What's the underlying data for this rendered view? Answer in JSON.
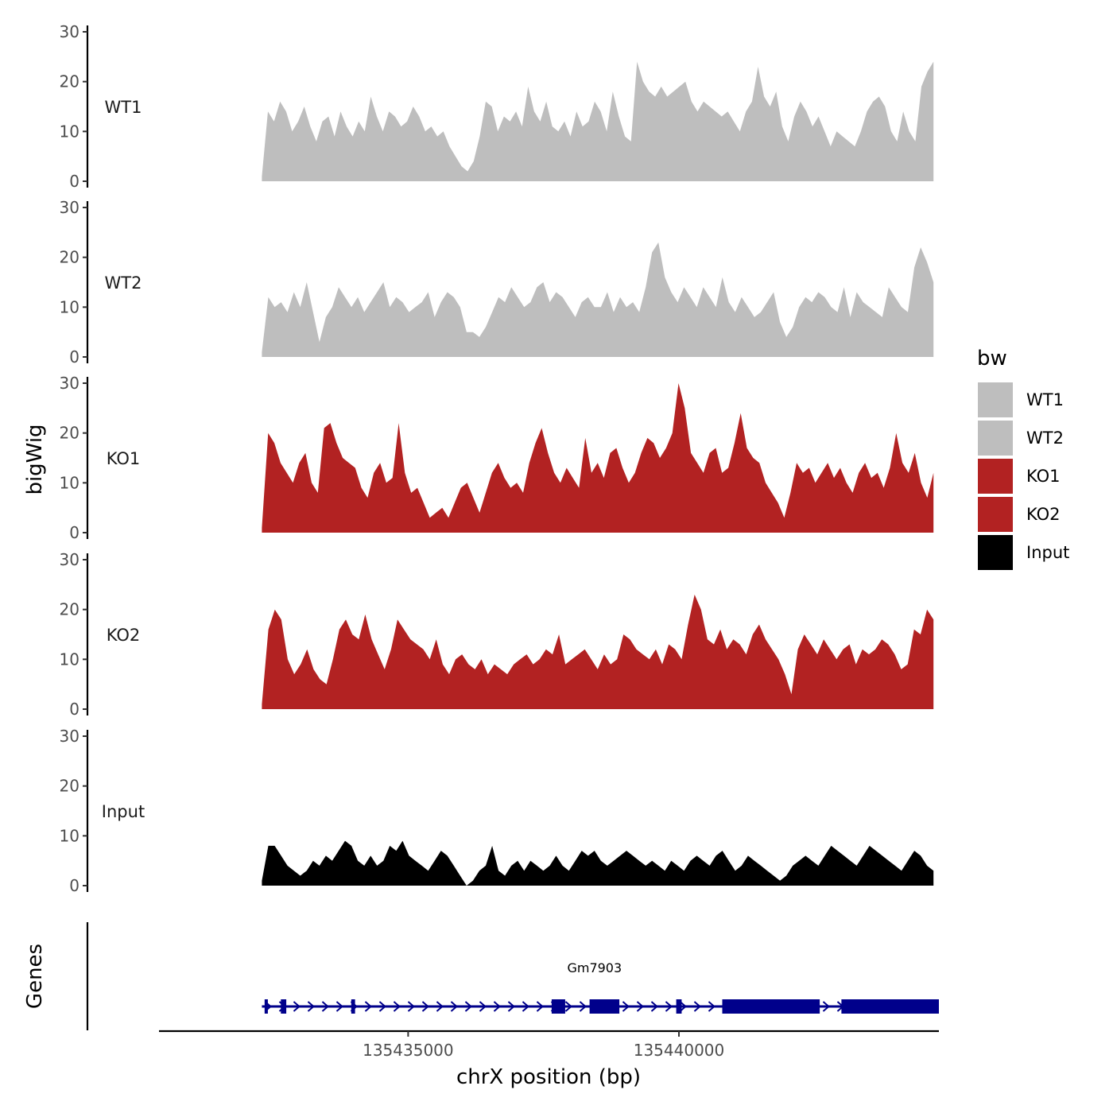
{
  "chart_data": {
    "type": "area",
    "y_axis_title": "bigWig",
    "genes_axis_title": "Genes",
    "xlabel": "chrX position (bp)",
    "x_range": [
      135430400,
      135444800
    ],
    "x_ticks": [
      135435000,
      135440000
    ],
    "x_tick_labels": [
      "135435000",
      "135440000"
    ],
    "y_ticks": [
      0,
      10,
      20,
      30
    ],
    "y_tick_labels": [
      "0",
      "10",
      "20",
      "30"
    ],
    "ylim": [
      0,
      30
    ],
    "legend": {
      "title": "bw",
      "entries": [
        {
          "name": "WT1",
          "color": "#bebebe"
        },
        {
          "name": "WT2",
          "color": "#bebebe"
        },
        {
          "name": "KO1",
          "color": "#b22222"
        },
        {
          "name": "KO2",
          "color": "#b22222"
        },
        {
          "name": "Input",
          "color": "#000000"
        }
      ]
    },
    "series": [
      {
        "name": "WT1",
        "color": "#bebebe",
        "x_start": 135432300,
        "x_end": 135444700,
        "values": [
          1,
          14,
          12,
          16,
          14,
          10,
          12,
          15,
          11,
          8,
          12,
          13,
          9,
          14,
          11,
          9,
          12,
          10,
          17,
          13,
          10,
          14,
          13,
          11,
          12,
          15,
          13,
          10,
          11,
          9,
          10,
          7,
          5,
          3,
          2,
          4,
          9,
          16,
          15,
          10,
          13,
          12,
          14,
          11,
          19,
          14,
          12,
          16,
          11,
          10,
          12,
          9,
          14,
          11,
          12,
          16,
          14,
          10,
          18,
          13,
          9,
          8,
          24,
          20,
          18,
          17,
          19,
          17,
          18,
          19,
          20,
          16,
          14,
          16,
          15,
          14,
          13,
          14,
          12,
          10,
          14,
          16,
          23,
          17,
          15,
          18,
          11,
          8,
          13,
          16,
          14,
          11,
          13,
          10,
          7,
          10,
          9,
          8,
          7,
          10,
          14,
          16,
          17,
          15,
          10,
          8,
          14,
          10,
          8,
          19,
          22,
          24
        ]
      },
      {
        "name": "WT2",
        "color": "#bebebe",
        "x_start": 135432300,
        "x_end": 135444700,
        "values": [
          1,
          12,
          10,
          11,
          9,
          13,
          10,
          15,
          9,
          3,
          8,
          10,
          14,
          12,
          10,
          12,
          9,
          11,
          13,
          15,
          10,
          12,
          11,
          9,
          10,
          11,
          13,
          8,
          11,
          13,
          12,
          10,
          5,
          5,
          4,
          6,
          9,
          12,
          11,
          14,
          12,
          10,
          11,
          14,
          15,
          11,
          13,
          12,
          10,
          8,
          11,
          12,
          10,
          10,
          13,
          9,
          12,
          10,
          11,
          9,
          14,
          21,
          23,
          16,
          13,
          11,
          14,
          12,
          10,
          14,
          12,
          10,
          16,
          11,
          9,
          12,
          10,
          8,
          9,
          11,
          13,
          7,
          4,
          6,
          10,
          12,
          11,
          13,
          12,
          10,
          9,
          14,
          8,
          13,
          11,
          10,
          9,
          8,
          14,
          12,
          10,
          9,
          18,
          22,
          19,
          15
        ]
      },
      {
        "name": "KO1",
        "color": "#b22222",
        "x_start": 135432300,
        "x_end": 135444700,
        "values": [
          1,
          20,
          18,
          14,
          12,
          10,
          14,
          16,
          10,
          8,
          21,
          22,
          18,
          15,
          14,
          13,
          9,
          7,
          12,
          14,
          10,
          11,
          22,
          12,
          8,
          9,
          6,
          3,
          4,
          5,
          3,
          6,
          9,
          10,
          7,
          4,
          8,
          12,
          14,
          11,
          9,
          10,
          8,
          14,
          18,
          21,
          16,
          12,
          10,
          13,
          11,
          9,
          19,
          12,
          14,
          11,
          16,
          17,
          13,
          10,
          12,
          16,
          19,
          18,
          15,
          17,
          20,
          30,
          25,
          16,
          14,
          12,
          16,
          17,
          12,
          13,
          18,
          24,
          17,
          15,
          14,
          10,
          8,
          6,
          3,
          8,
          14,
          12,
          13,
          10,
          12,
          14,
          11,
          13,
          10,
          8,
          12,
          14,
          11,
          12,
          9,
          13,
          20,
          14,
          12,
          16,
          10,
          7,
          12
        ]
      },
      {
        "name": "KO2",
        "color": "#b22222",
        "x_start": 135432300,
        "x_end": 135444700,
        "values": [
          1,
          16,
          20,
          18,
          10,
          7,
          9,
          12,
          8,
          6,
          5,
          10,
          16,
          18,
          15,
          14,
          19,
          14,
          11,
          8,
          12,
          18,
          16,
          14,
          13,
          12,
          10,
          14,
          9,
          7,
          10,
          11,
          9,
          8,
          10,
          7,
          9,
          8,
          7,
          9,
          10,
          11,
          9,
          10,
          12,
          11,
          15,
          9,
          10,
          11,
          12,
          10,
          8,
          11,
          9,
          10,
          15,
          14,
          12,
          11,
          10,
          12,
          9,
          13,
          12,
          10,
          17,
          23,
          20,
          14,
          13,
          16,
          12,
          14,
          13,
          11,
          15,
          17,
          14,
          12,
          10,
          7,
          3,
          12,
          15,
          13,
          11,
          14,
          12,
          10,
          12,
          13,
          9,
          12,
          11,
          12,
          14,
          13,
          11,
          8,
          9,
          16,
          15,
          20,
          18
        ]
      },
      {
        "name": "Input",
        "color": "#000000",
        "x_start": 135432300,
        "x_end": 135444700,
        "values": [
          1,
          8,
          8,
          6,
          4,
          3,
          2,
          3,
          5,
          4,
          6,
          5,
          7,
          9,
          8,
          5,
          4,
          6,
          4,
          5,
          8,
          7,
          9,
          6,
          5,
          4,
          3,
          5,
          7,
          6,
          4,
          2,
          0,
          1,
          3,
          4,
          8,
          3,
          2,
          4,
          5,
          3,
          5,
          4,
          3,
          4,
          6,
          4,
          3,
          5,
          7,
          6,
          7,
          5,
          4,
          5,
          6,
          7,
          6,
          5,
          4,
          5,
          4,
          3,
          5,
          4,
          3,
          5,
          6,
          5,
          4,
          6,
          7,
          5,
          3,
          4,
          6,
          5,
          4,
          3,
          2,
          1,
          2,
          4,
          5,
          6,
          5,
          4,
          6,
          8,
          7,
          6,
          5,
          4,
          6,
          8,
          7,
          6,
          5,
          4,
          3,
          5,
          7,
          6,
          4,
          3
        ]
      }
    ],
    "genes": [
      {
        "name": "Gm7903",
        "color": "#00008b",
        "x_start": 135432300,
        "x_end": 135444700,
        "exons": [
          [
            135432350,
            135432410
          ],
          [
            135432650,
            135432750
          ],
          [
            135433950,
            135434020
          ],
          [
            135437650,
            135437900
          ],
          [
            135438350,
            135438900
          ],
          [
            135439950,
            135440050
          ],
          [
            135440800,
            135442600
          ],
          [
            135443000,
            135444800
          ]
        ]
      }
    ]
  }
}
